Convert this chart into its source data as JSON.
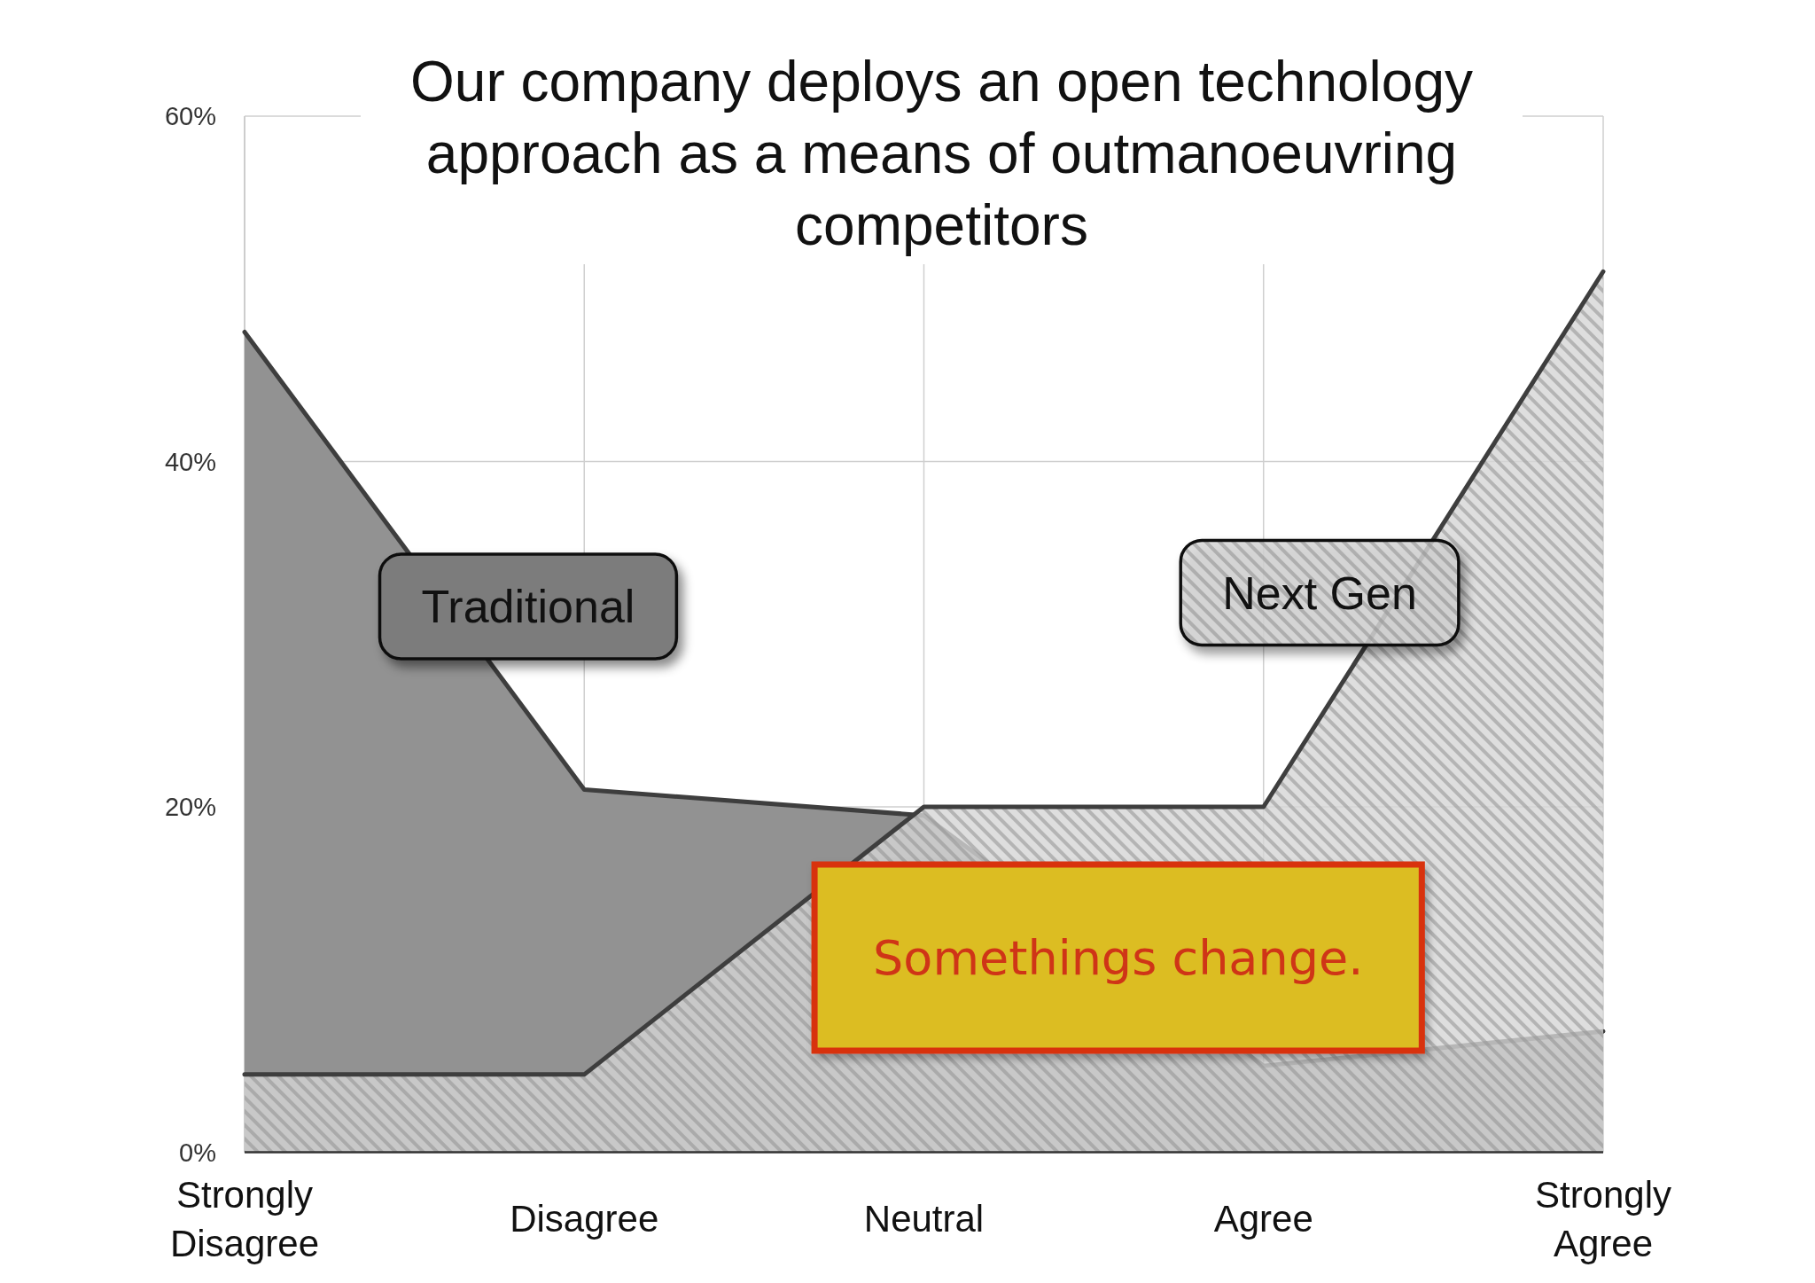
{
  "chart_data": {
    "type": "area",
    "title": "Our company deploys an open technology approach as a means of outmanoeuvring competitors",
    "categories": [
      "Strongly Disagree",
      "Disagree",
      "Neutral",
      "Agree",
      "Strongly Agree"
    ],
    "series": [
      {
        "name": "Traditional",
        "color": "#929292",
        "values": [
          47.5,
          21,
          19.5,
          5,
          7
        ]
      },
      {
        "name": "Next Gen",
        "color": "#d6d6d6",
        "values": [
          4.5,
          4.5,
          20,
          20,
          51
        ]
      }
    ],
    "ylim": [
      0,
      60
    ],
    "yticks": [
      {
        "value": 0,
        "label": "0%"
      },
      {
        "value": 20,
        "label": "20%"
      },
      {
        "value": 40,
        "label": "40%"
      },
      {
        "value": 60,
        "label": "60%"
      }
    ],
    "grid": true,
    "annotations": [
      "Somethings change."
    ]
  }
}
